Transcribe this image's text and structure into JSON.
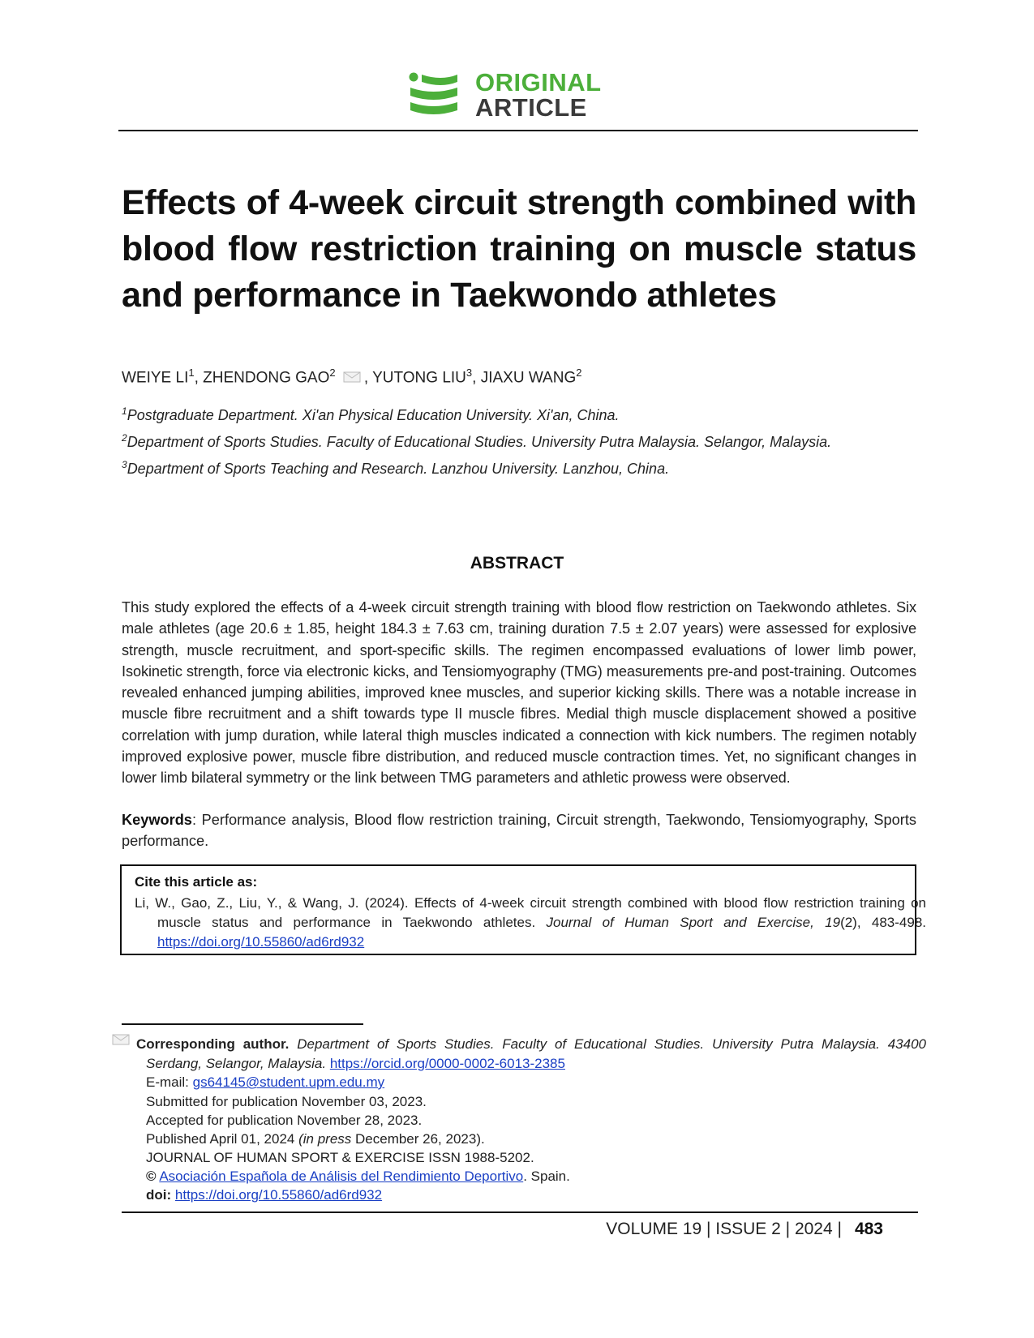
{
  "header": {
    "logo_line1": "ORIGINAL",
    "logo_line2": "ARTICLE",
    "logo_icon": "stacked-stripes-logo",
    "colors": {
      "green": "#4caf3a",
      "dark": "#3a3a3a",
      "link": "#1a3fc4"
    }
  },
  "title": "Effects of 4-week circuit strength combined with blood flow restriction training on muscle status and performance in Taekwondo athletes",
  "authors": [
    {
      "name": "WEIYE LI",
      "sup": "1"
    },
    {
      "name": "ZHENDONG GAO",
      "sup": "2"
    },
    {
      "name": "YUTONG LIU",
      "sup": "3"
    },
    {
      "name": "JIAXU WANG",
      "sup": "2"
    }
  ],
  "affiliations": [
    {
      "sup": "1",
      "text": "Postgraduate Department. Xi'an Physical Education University. Xi'an, China."
    },
    {
      "sup": "2",
      "text": "Department of Sports Studies. Faculty of Educational Studies. University Putra Malaysia. Selangor, Malaysia."
    },
    {
      "sup": "3",
      "text": "Department of Sports Teaching and Research. Lanzhou University. Lanzhou, China."
    }
  ],
  "abstract": {
    "heading": "ABSTRACT",
    "text": "This study explored the effects of a 4-week circuit strength training with blood flow restriction on Taekwondo athletes. Six male athletes (age 20.6 ± 1.85, height 184.3 ± 7.63 cm, training duration 7.5 ± 2.07 years) were assessed for explosive strength, muscle recruitment, and sport-specific skills. The regimen encompassed evaluations of lower limb power, Isokinetic strength, force via electronic kicks, and Tensiomyography (TMG) measurements pre-and post-training. Outcomes revealed enhanced jumping abilities, improved knee muscles, and superior kicking skills. There was a notable increase in muscle fibre recruitment and a shift towards type II muscle fibres. Medial thigh muscle displacement showed a positive correlation with jump duration, while lateral thigh muscles indicated a connection with kick numbers. The regimen notably improved explosive power, muscle fibre distribution, and reduced muscle contraction times. Yet, no significant changes in lower limb bilateral symmetry or the link between TMG parameters and athletic prowess were observed.",
    "keywords_label": "Keywords",
    "keywords_text": ": Performance analysis, Blood flow restriction training, Circuit strength, Taekwondo, Tensiomyography, Sports performance."
  },
  "cite": {
    "heading": "Cite this article as:",
    "text_pre": "Li, W., Gao, Z., Liu, Y., & Wang, J. (2024). Effects of 4-week circuit strength combined with blood flow restriction training on muscle status and performance in Taekwondo athletes. ",
    "journal": "Journal of Human Sport and Exercise, 19",
    "text_post": "(2), 483-498.",
    "doi_link": "https://doi.org/10.55860/ad6rd932"
  },
  "footnote": {
    "corr_label": "Corresponding author.",
    "corr_text": " Department of Sports Studies. Faculty of Educational Studies. University Putra Malaysia. 43400 Serdang, Selangor, Malaysia. ",
    "orcid_link": "https://orcid.org/0000-0002-6013-2385",
    "email_label": "E-mail: ",
    "email": "gs64145@student.upm.edu.my",
    "submitted": "Submitted for publication November 03, 2023.",
    "accepted": "Accepted for publication November 28, 2023.",
    "published_pre": "Published April 01, 2024 ",
    "published_italic": "(in press",
    "published_post": " December 26, 2023).",
    "issn": "JOURNAL OF HUMAN SPORT & EXERCISE ISSN 1988-5202.",
    "copyright_symbol": "©",
    "publisher_link": "Asociación Española de Análisis del Rendimiento Deportivo",
    "publisher_post": ". Spain.",
    "doi_label": "doi:",
    "doi_link": "https://doi.org/10.55860/ad6rd932"
  },
  "footer": {
    "volume_text": "VOLUME 19 | ISSUE 2 | 2024 |",
    "page": "483"
  }
}
